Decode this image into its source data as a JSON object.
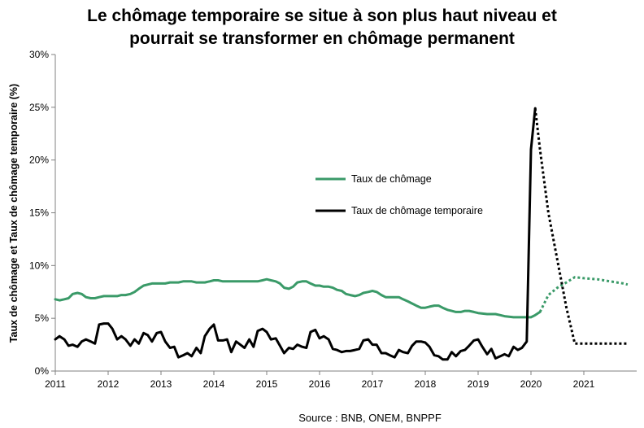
{
  "chart_data": {
    "type": "line",
    "title_line1": "Le chômage temporaire se situe à son plus haut niveau et",
    "title_line2": "pourrait se transformer en chômage permanent",
    "ylabel": "Taux de chômage et Taux de chômage temporaire (%)",
    "xlabel": "",
    "source": "Source : BNB, ONEM, BNPPF",
    "xlim": [
      2011,
      2022
    ],
    "ylim": [
      0,
      30
    ],
    "x_ticks": [
      "2011",
      "2012",
      "2013",
      "2014",
      "2015",
      "2016",
      "2017",
      "2018",
      "2019",
      "2020",
      "2021"
    ],
    "y_ticks": [
      "0%",
      "5%",
      "10%",
      "15%",
      "20%",
      "25%",
      "30%"
    ],
    "grid": false,
    "legend_position": "center",
    "series": [
      {
        "name": "Taux de chômage",
        "color": "#3a9a68",
        "style": "solid",
        "points": [
          [
            2011.0,
            6.8
          ],
          [
            2011.08,
            6.7
          ],
          [
            2011.17,
            6.8
          ],
          [
            2011.25,
            6.9
          ],
          [
            2011.33,
            7.3
          ],
          [
            2011.42,
            7.4
          ],
          [
            2011.5,
            7.3
          ],
          [
            2011.58,
            7.0
          ],
          [
            2011.67,
            6.9
          ],
          [
            2011.75,
            6.9
          ],
          [
            2011.83,
            7.0
          ],
          [
            2011.92,
            7.1
          ],
          [
            2012.0,
            7.1
          ],
          [
            2012.17,
            7.1
          ],
          [
            2012.25,
            7.2
          ],
          [
            2012.33,
            7.2
          ],
          [
            2012.42,
            7.3
          ],
          [
            2012.5,
            7.5
          ],
          [
            2012.58,
            7.8
          ],
          [
            2012.67,
            8.1
          ],
          [
            2012.75,
            8.2
          ],
          [
            2012.83,
            8.3
          ],
          [
            2012.92,
            8.3
          ],
          [
            2013.0,
            8.3
          ],
          [
            2013.08,
            8.3
          ],
          [
            2013.17,
            8.4
          ],
          [
            2013.33,
            8.4
          ],
          [
            2013.42,
            8.5
          ],
          [
            2013.58,
            8.5
          ],
          [
            2013.67,
            8.4
          ],
          [
            2013.75,
            8.4
          ],
          [
            2013.83,
            8.4
          ],
          [
            2013.92,
            8.5
          ],
          [
            2014.0,
            8.6
          ],
          [
            2014.08,
            8.6
          ],
          [
            2014.17,
            8.5
          ],
          [
            2014.33,
            8.5
          ],
          [
            2014.5,
            8.5
          ],
          [
            2014.67,
            8.5
          ],
          [
            2014.83,
            8.5
          ],
          [
            2014.92,
            8.6
          ],
          [
            2015.0,
            8.7
          ],
          [
            2015.08,
            8.6
          ],
          [
            2015.17,
            8.5
          ],
          [
            2015.25,
            8.3
          ],
          [
            2015.33,
            7.9
          ],
          [
            2015.42,
            7.8
          ],
          [
            2015.5,
            8.0
          ],
          [
            2015.58,
            8.4
          ],
          [
            2015.67,
            8.5
          ],
          [
            2015.75,
            8.5
          ],
          [
            2015.83,
            8.3
          ],
          [
            2015.92,
            8.1
          ],
          [
            2016.0,
            8.1
          ],
          [
            2016.08,
            8.0
          ],
          [
            2016.17,
            8.0
          ],
          [
            2016.25,
            7.9
          ],
          [
            2016.33,
            7.7
          ],
          [
            2016.42,
            7.6
          ],
          [
            2016.5,
            7.3
          ],
          [
            2016.58,
            7.2
          ],
          [
            2016.67,
            7.1
          ],
          [
            2016.75,
            7.2
          ],
          [
            2016.83,
            7.4
          ],
          [
            2016.92,
            7.5
          ],
          [
            2017.0,
            7.6
          ],
          [
            2017.08,
            7.5
          ],
          [
            2017.17,
            7.2
          ],
          [
            2017.25,
            7.0
          ],
          [
            2017.33,
            7.0
          ],
          [
            2017.5,
            7.0
          ],
          [
            2017.58,
            6.8
          ],
          [
            2017.67,
            6.6
          ],
          [
            2017.75,
            6.4
          ],
          [
            2017.83,
            6.2
          ],
          [
            2017.92,
            6.0
          ],
          [
            2018.0,
            6.0
          ],
          [
            2018.08,
            6.1
          ],
          [
            2018.17,
            6.2
          ],
          [
            2018.25,
            6.2
          ],
          [
            2018.33,
            6.0
          ],
          [
            2018.42,
            5.8
          ],
          [
            2018.5,
            5.7
          ],
          [
            2018.58,
            5.6
          ],
          [
            2018.67,
            5.6
          ],
          [
            2018.75,
            5.7
          ],
          [
            2018.83,
            5.7
          ],
          [
            2018.92,
            5.6
          ],
          [
            2019.0,
            5.5
          ],
          [
            2019.17,
            5.4
          ],
          [
            2019.33,
            5.4
          ],
          [
            2019.42,
            5.3
          ],
          [
            2019.5,
            5.2
          ],
          [
            2019.67,
            5.1
          ],
          [
            2019.83,
            5.1
          ],
          [
            2020.0,
            5.1
          ],
          [
            2020.08,
            5.3
          ],
          [
            2020.17,
            5.6
          ]
        ]
      },
      {
        "name": "Taux de chômage temporaire",
        "color": "#000000",
        "style": "solid",
        "points": [
          [
            2011.0,
            3.0
          ],
          [
            2011.08,
            3.3
          ],
          [
            2011.17,
            3.0
          ],
          [
            2011.25,
            2.4
          ],
          [
            2011.33,
            2.5
          ],
          [
            2011.42,
            2.3
          ],
          [
            2011.5,
            2.8
          ],
          [
            2011.58,
            3.0
          ],
          [
            2011.67,
            2.8
          ],
          [
            2011.75,
            2.6
          ],
          [
            2011.83,
            4.4
          ],
          [
            2011.92,
            4.5
          ],
          [
            2012.0,
            4.5
          ],
          [
            2012.08,
            4.0
          ],
          [
            2012.17,
            3.0
          ],
          [
            2012.25,
            3.3
          ],
          [
            2012.33,
            3.0
          ],
          [
            2012.42,
            2.4
          ],
          [
            2012.5,
            3.0
          ],
          [
            2012.58,
            2.6
          ],
          [
            2012.67,
            3.6
          ],
          [
            2012.75,
            3.4
          ],
          [
            2012.83,
            2.8
          ],
          [
            2012.92,
            3.6
          ],
          [
            2013.0,
            3.7
          ],
          [
            2013.08,
            2.8
          ],
          [
            2013.17,
            2.2
          ],
          [
            2013.25,
            2.3
          ],
          [
            2013.33,
            1.3
          ],
          [
            2013.42,
            1.5
          ],
          [
            2013.5,
            1.7
          ],
          [
            2013.58,
            1.4
          ],
          [
            2013.67,
            2.2
          ],
          [
            2013.75,
            1.7
          ],
          [
            2013.83,
            3.3
          ],
          [
            2013.92,
            4.0
          ],
          [
            2014.0,
            4.4
          ],
          [
            2014.08,
            2.9
          ],
          [
            2014.17,
            2.9
          ],
          [
            2014.25,
            3.0
          ],
          [
            2014.33,
            1.8
          ],
          [
            2014.42,
            2.8
          ],
          [
            2014.5,
            2.5
          ],
          [
            2014.58,
            2.2
          ],
          [
            2014.67,
            3.0
          ],
          [
            2014.75,
            2.3
          ],
          [
            2014.83,
            3.8
          ],
          [
            2014.92,
            4.0
          ],
          [
            2015.0,
            3.7
          ],
          [
            2015.08,
            3.0
          ],
          [
            2015.17,
            3.1
          ],
          [
            2015.25,
            2.4
          ],
          [
            2015.33,
            1.7
          ],
          [
            2015.42,
            2.2
          ],
          [
            2015.5,
            2.1
          ],
          [
            2015.58,
            2.5
          ],
          [
            2015.67,
            2.3
          ],
          [
            2015.75,
            2.2
          ],
          [
            2015.83,
            3.7
          ],
          [
            2015.92,
            3.9
          ],
          [
            2016.0,
            3.1
          ],
          [
            2016.08,
            3.3
          ],
          [
            2016.17,
            3.0
          ],
          [
            2016.25,
            2.1
          ],
          [
            2016.33,
            2.0
          ],
          [
            2016.42,
            1.8
          ],
          [
            2016.5,
            1.9
          ],
          [
            2016.58,
            1.9
          ],
          [
            2016.67,
            2.0
          ],
          [
            2016.75,
            2.1
          ],
          [
            2016.83,
            2.9
          ],
          [
            2016.92,
            3.0
          ],
          [
            2017.0,
            2.5
          ],
          [
            2017.08,
            2.5
          ],
          [
            2017.17,
            1.7
          ],
          [
            2017.25,
            1.7
          ],
          [
            2017.33,
            1.5
          ],
          [
            2017.42,
            1.3
          ],
          [
            2017.5,
            2.0
          ],
          [
            2017.58,
            1.8
          ],
          [
            2017.67,
            1.7
          ],
          [
            2017.75,
            2.4
          ],
          [
            2017.83,
            2.8
          ],
          [
            2017.92,
            2.8
          ],
          [
            2018.0,
            2.7
          ],
          [
            2018.08,
            2.3
          ],
          [
            2018.17,
            1.5
          ],
          [
            2018.25,
            1.4
          ],
          [
            2018.33,
            1.1
          ],
          [
            2018.42,
            1.1
          ],
          [
            2018.5,
            1.8
          ],
          [
            2018.58,
            1.4
          ],
          [
            2018.67,
            1.9
          ],
          [
            2018.75,
            2.0
          ],
          [
            2018.83,
            2.4
          ],
          [
            2018.92,
            2.9
          ],
          [
            2019.0,
            3.0
          ],
          [
            2019.08,
            2.3
          ],
          [
            2019.17,
            1.6
          ],
          [
            2019.25,
            2.1
          ],
          [
            2019.33,
            1.2
          ],
          [
            2019.42,
            1.4
          ],
          [
            2019.5,
            1.6
          ],
          [
            2019.58,
            1.4
          ],
          [
            2019.67,
            2.3
          ],
          [
            2019.75,
            2.0
          ],
          [
            2019.83,
            2.2
          ],
          [
            2019.92,
            2.8
          ],
          [
            2020.0,
            21.0
          ],
          [
            2020.08,
            24.9
          ]
        ]
      },
      {
        "name": "",
        "color": "#3a9a68",
        "style": "dotted",
        "points": [
          [
            2020.17,
            5.6
          ],
          [
            2020.33,
            7.2
          ],
          [
            2020.5,
            7.9
          ],
          [
            2020.67,
            8.4
          ],
          [
            2020.83,
            8.9
          ],
          [
            2021.0,
            8.8
          ],
          [
            2021.25,
            8.7
          ],
          [
            2021.5,
            8.5
          ],
          [
            2021.75,
            8.3
          ],
          [
            2021.83,
            8.2
          ]
        ]
      },
      {
        "name": "",
        "color": "#000000",
        "style": "dotted",
        "points": [
          [
            2020.08,
            24.9
          ],
          [
            2020.17,
            21.0
          ],
          [
            2020.33,
            15.0
          ],
          [
            2020.5,
            10.5
          ],
          [
            2020.67,
            6.0
          ],
          [
            2020.83,
            2.6
          ],
          [
            2021.0,
            2.6
          ],
          [
            2021.5,
            2.6
          ],
          [
            2021.83,
            2.6
          ]
        ]
      }
    ]
  }
}
